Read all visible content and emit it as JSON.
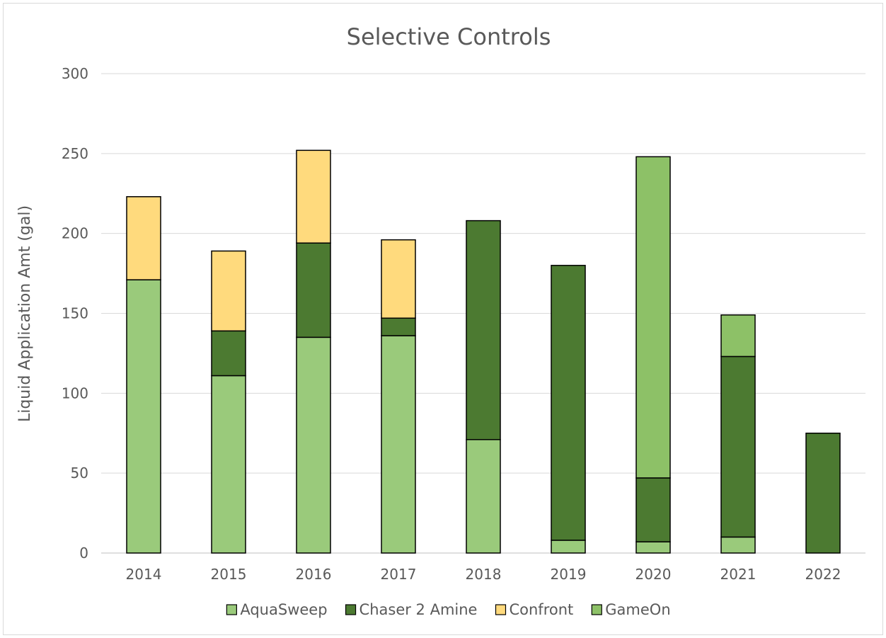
{
  "chart_data": {
    "type": "bar",
    "stacked": true,
    "title": "Selective Controls",
    "xlabel": "",
    "ylabel": "Liquid Application Amt (gal)",
    "ylim": [
      0,
      300
    ],
    "yticks": [
      0,
      50,
      100,
      150,
      200,
      250,
      300
    ],
    "grid": true,
    "legend_position": "bottom",
    "categories": [
      "2014",
      "2015",
      "2016",
      "2017",
      "2018",
      "2019",
      "2020",
      "2021",
      "2022"
    ],
    "series": [
      {
        "name": "AquaSweep",
        "color": "#9ACA7B",
        "values": [
          171,
          111,
          135,
          136,
          71,
          8,
          7,
          10,
          0
        ]
      },
      {
        "name": "Chaser 2 Amine",
        "color": "#4C7A31",
        "values": [
          0,
          28,
          59,
          11,
          137,
          172,
          40,
          113,
          75
        ]
      },
      {
        "name": "Confront",
        "color": "#FFDA7D",
        "values": [
          52,
          50,
          58,
          49,
          0,
          0,
          0,
          0,
          0
        ]
      },
      {
        "name": "GameOn",
        "color": "#8DC167",
        "values": [
          0,
          0,
          0,
          0,
          0,
          0,
          201,
          26,
          0
        ]
      }
    ]
  }
}
